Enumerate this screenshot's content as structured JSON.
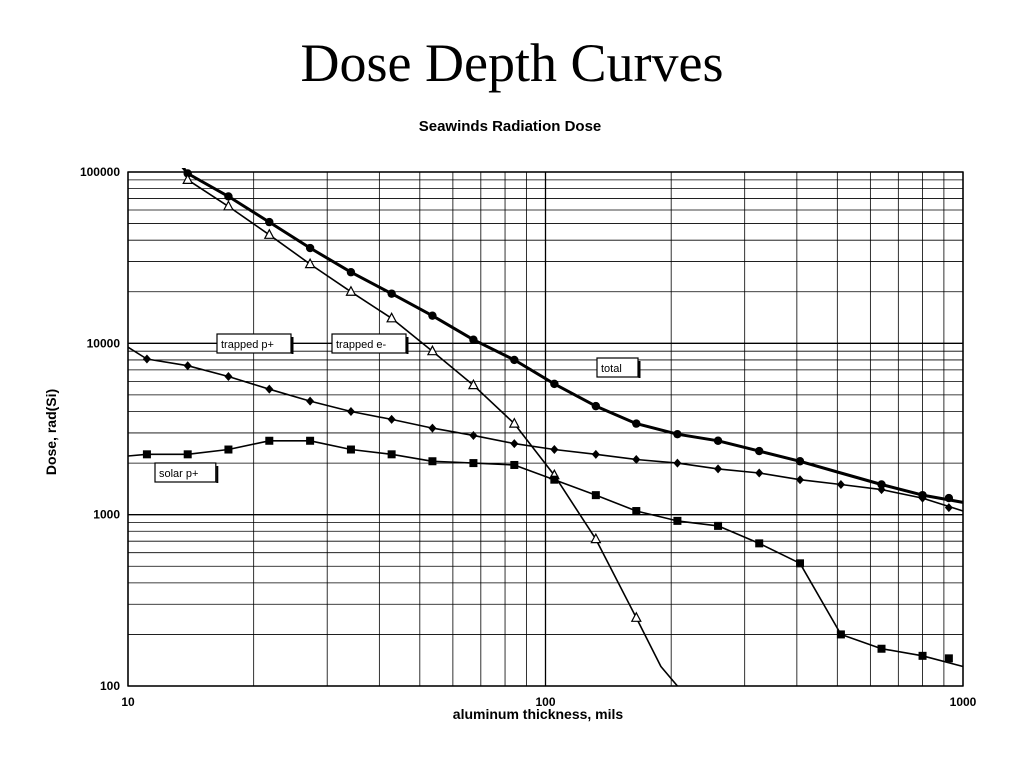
{
  "slide": {
    "title": "Dose Depth Curves"
  },
  "chart_data": {
    "type": "line",
    "title": "Seawinds Radiation Dose",
    "xlabel": "aluminum thickness, mils",
    "ylabel": "Dose, rad(Si)",
    "xscale": "log",
    "yscale": "log",
    "xlim": [
      10,
      1000
    ],
    "ylim": [
      100,
      100000
    ],
    "xticks": [
      {
        "value": 10,
        "label": "10"
      },
      {
        "value": 100,
        "label": "100"
      },
      {
        "value": 1000,
        "label": "1000"
      }
    ],
    "yticks": [
      {
        "value": 100,
        "label": "100"
      },
      {
        "value": 1000,
        "label": "1000"
      },
      {
        "value": 10000,
        "label": "10000"
      },
      {
        "value": 100000,
        "label": "100000"
      }
    ],
    "grid": true,
    "legend": "inline labels",
    "series": [
      {
        "name": "total",
        "marker": "circle",
        "line_weight": "heavy",
        "x": [
          12.7,
          13.9,
          17.4,
          21.8,
          27.3,
          34.2,
          42.8,
          53.6,
          67.2,
          84.2,
          105,
          132,
          165,
          207,
          259,
          325,
          407,
          510,
          638,
          800,
          1000
        ],
        "y": [
          130000,
          98000,
          72000,
          51000,
          36000,
          26000,
          19500,
          14500,
          10500,
          8000,
          5800,
          4300,
          3400,
          2950,
          2700,
          2350,
          2050,
          1750,
          1500,
          1300,
          1180
        ],
        "points_x": [
          13.9,
          17.4,
          21.8,
          27.3,
          34.2,
          42.8,
          53.6,
          67.2,
          84.2,
          105,
          132,
          165,
          207,
          259,
          325,
          407,
          638,
          800,
          925
        ],
        "points_y": [
          98000,
          72000,
          51000,
          36000,
          26000,
          19500,
          14500,
          10500,
          8000,
          5800,
          4300,
          3400,
          2950,
          2700,
          2350,
          2050,
          1500,
          1300,
          1250
        ]
      },
      {
        "name": "trapped e-",
        "marker": "triangle-open",
        "x": [
          13.9,
          17.4,
          21.8,
          27.3,
          34.2,
          42.8,
          53.6,
          67.2,
          84.2,
          105,
          132,
          165,
          189,
          207
        ],
        "y": [
          90000,
          63000,
          43000,
          29000,
          20000,
          14000,
          9000,
          5700,
          3400,
          1700,
          720,
          250,
          130,
          100
        ],
        "points_x": [
          13.9,
          17.4,
          21.8,
          27.3,
          34.2,
          42.8,
          53.6,
          67.2,
          84.2,
          105,
          132,
          165
        ],
        "points_y": [
          90000,
          63000,
          43000,
          29000,
          20000,
          14000,
          9000,
          5700,
          3400,
          1700,
          720,
          250
        ]
      },
      {
        "name": "trapped p+",
        "marker": "diamond",
        "x": [
          10,
          11.1,
          13.9,
          17.4,
          21.8,
          27.3,
          34.2,
          42.8,
          53.6,
          67.2,
          84.2,
          105,
          132,
          165,
          207,
          259,
          325,
          407,
          510,
          638,
          800,
          1000
        ],
        "y": [
          9500,
          8100,
          7400,
          6400,
          5400,
          4600,
          4000,
          3600,
          3200,
          2900,
          2600,
          2400,
          2250,
          2100,
          2000,
          1850,
          1750,
          1600,
          1500,
          1400,
          1250,
          1050
        ],
        "points_x": [
          11.1,
          13.9,
          17.4,
          21.8,
          27.3,
          34.2,
          42.8,
          53.6,
          67.2,
          84.2,
          105,
          132,
          165,
          207,
          259,
          325,
          407,
          510,
          638,
          800,
          925
        ],
        "points_y": [
          8100,
          7400,
          6400,
          5400,
          4600,
          4000,
          3600,
          3200,
          2900,
          2600,
          2400,
          2250,
          2100,
          2000,
          1850,
          1750,
          1600,
          1500,
          1400,
          1250,
          1100
        ]
      },
      {
        "name": "solar p+",
        "marker": "square",
        "x": [
          10,
          11.1,
          13.9,
          17.4,
          21.8,
          27.3,
          34.2,
          42.8,
          53.6,
          67.2,
          84.2,
          105,
          132,
          165,
          207,
          259,
          325,
          407,
          510,
          638,
          800,
          1000
        ],
        "y": [
          2200,
          2250,
          2250,
          2400,
          2700,
          2700,
          2400,
          2250,
          2050,
          2000,
          1950,
          1600,
          1300,
          1050,
          920,
          860,
          680,
          520,
          200,
          165,
          150,
          130
        ],
        "points_x": [
          11.1,
          13.9,
          17.4,
          21.8,
          27.3,
          34.2,
          42.8,
          53.6,
          67.2,
          84.2,
          105,
          132,
          165,
          207,
          259,
          325,
          407,
          510,
          638,
          800,
          925
        ],
        "points_y": [
          2250,
          2250,
          2400,
          2700,
          2700,
          2400,
          2250,
          2050,
          2000,
          1950,
          1600,
          1300,
          1050,
          920,
          860,
          680,
          520,
          200,
          165,
          150,
          145
        ]
      }
    ]
  }
}
